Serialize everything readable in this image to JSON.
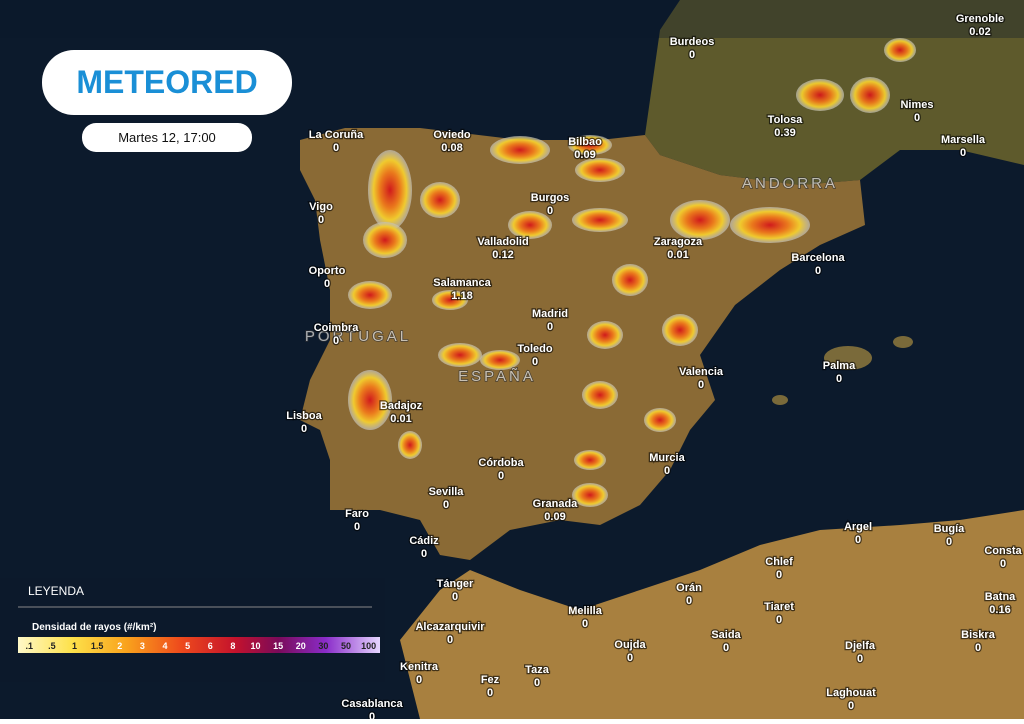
{
  "header": {
    "logo": "METEORED",
    "datetime": "Martes 12, 17:00"
  },
  "regions": [
    "PORTUGAL",
    "ESPAÑA",
    "ANDORRA"
  ],
  "cities": [
    {
      "name": "Grenoble",
      "value": 0.02
    },
    {
      "name": "Burdeos",
      "value": 0
    },
    {
      "name": "La Coruña",
      "value": 0
    },
    {
      "name": "Oviedo",
      "value": 0.08
    },
    {
      "name": "Bilbao",
      "value": 0.09
    },
    {
      "name": "Tolosa",
      "value": 0.39
    },
    {
      "name": "Nimes",
      "value": 0
    },
    {
      "name": "Marsella",
      "value": 0
    },
    {
      "name": "Vigo",
      "value": 0
    },
    {
      "name": "Burgos",
      "value": 0
    },
    {
      "name": "Valladolid",
      "value": 0.12
    },
    {
      "name": "Zaragoza",
      "value": 0.01
    },
    {
      "name": "Barcelona",
      "value": 0
    },
    {
      "name": "Oporto",
      "value": 0
    },
    {
      "name": "Salamanca",
      "value": 1.18
    },
    {
      "name": "Madrid",
      "value": 0
    },
    {
      "name": "Coimbra",
      "value": 0
    },
    {
      "name": "Toledo",
      "value": 0
    },
    {
      "name": "Valencia",
      "value": 0
    },
    {
      "name": "Palma",
      "value": 0
    },
    {
      "name": "Lisboa",
      "value": 0
    },
    {
      "name": "Badajoz",
      "value": 0.01
    },
    {
      "name": "Córdoba",
      "value": 0
    },
    {
      "name": "Murcia",
      "value": 0
    },
    {
      "name": "Sevilla",
      "value": 0
    },
    {
      "name": "Granada",
      "value": 0.09
    },
    {
      "name": "Faro",
      "value": 0
    },
    {
      "name": "Cádiz",
      "value": 0
    },
    {
      "name": "Argel",
      "value": 0
    },
    {
      "name": "Bugía",
      "value": 0
    },
    {
      "name": "Consta",
      "value": 0
    },
    {
      "name": "Tánger",
      "value": 0
    },
    {
      "name": "Chlef",
      "value": 0
    },
    {
      "name": "Orán",
      "value": 0
    },
    {
      "name": "Batna",
      "value": 0.16
    },
    {
      "name": "Melilla",
      "value": 0
    },
    {
      "name": "Tiaret",
      "value": 0
    },
    {
      "name": "Alcazarquivir",
      "value": 0
    },
    {
      "name": "Saida",
      "value": 0
    },
    {
      "name": "Biskra",
      "value": 0
    },
    {
      "name": "Oujda",
      "value": 0
    },
    {
      "name": "Djelfa",
      "value": 0
    },
    {
      "name": "Kenitra",
      "value": 0
    },
    {
      "name": "Taza",
      "value": 0
    },
    {
      "name": "Fez",
      "value": 0
    },
    {
      "name": "Laghouat",
      "value": 0
    },
    {
      "name": "Casablanca",
      "value": 0
    }
  ],
  "legend": {
    "title": "LEYENDA",
    "subtitle": "Densidad de rayos (#/km²)",
    "labels": [
      ".1",
      ".5",
      "1",
      "1.5",
      "2",
      "3",
      "4",
      "5",
      "6",
      "8",
      "10",
      "15",
      "20",
      "30",
      "50",
      "100"
    ]
  }
}
